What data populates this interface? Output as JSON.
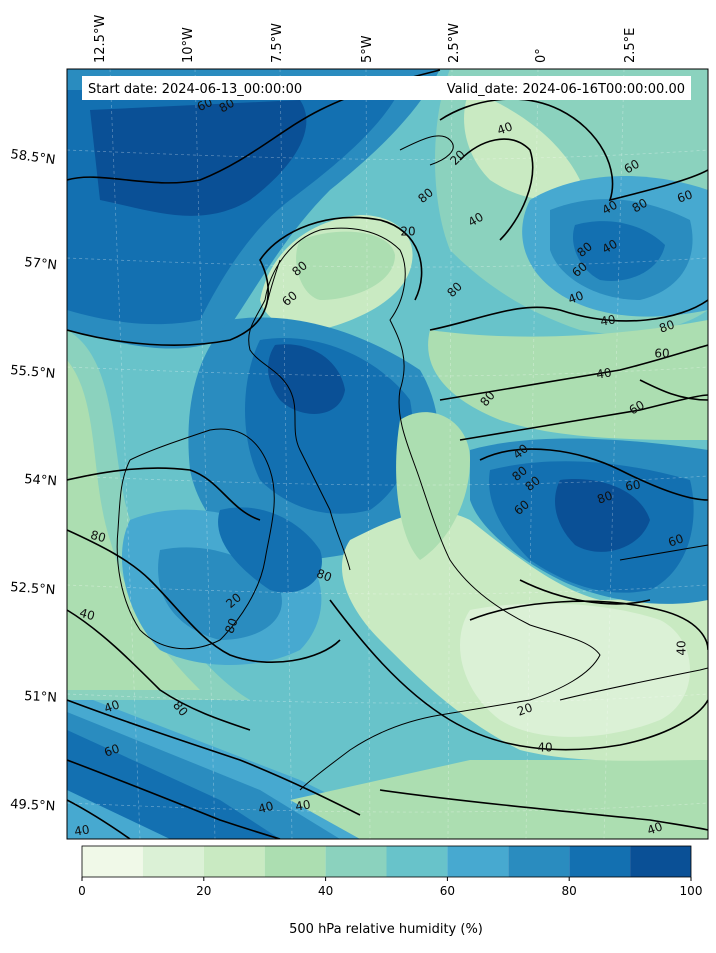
{
  "map": {
    "start_label": "Start date: 2024-06-13_00:00:00",
    "valid_label": "Valid_date: 2024-06-16T00:00:00.00",
    "longitude_labels": [
      "12.5°W",
      "10°W",
      "7.5°W",
      "5°W",
      "2.5°W",
      "0°",
      "2.5°E"
    ],
    "latitude_labels": [
      "58.5°N",
      "57°N",
      "55.5°N",
      "54°N",
      "52.5°N",
      "51°N",
      "49.5°N"
    ],
    "contour_labels": [
      "60",
      "80",
      "40",
      "20",
      "60",
      "80",
      "40",
      "20",
      "80",
      "60",
      "80",
      "40",
      "60",
      "80",
      "40",
      "80",
      "60",
      "40",
      "40",
      "80",
      "60",
      "40",
      "60",
      "80",
      "40",
      "80",
      "60",
      "80",
      "80",
      "60",
      "60",
      "40",
      "20",
      "40",
      "40",
      "40",
      "40",
      "40",
      "80",
      "60",
      "40",
      "80",
      "40",
      "20",
      "80",
      "80"
    ],
    "colors": {
      "level_0_10": "#f0f9e8",
      "level_10_20": "#dbf1d6",
      "level_20_30": "#c9eac2",
      "level_30_40": "#acdeb1",
      "level_40_50": "#8bd2be",
      "level_50_60": "#68c3ca",
      "level_60_70": "#47a9d0",
      "level_70_80": "#2a8cbf",
      "level_80_90": "#1370b1",
      "level_90_100": "#0a5096",
      "contour_line": "#000000",
      "coastline": "#000000"
    }
  },
  "colorbar": {
    "title": "500 hPa relative humidity (%)",
    "ticks": [
      "0",
      "20",
      "40",
      "60",
      "80",
      "100"
    ],
    "levels": [
      0,
      10,
      20,
      30,
      40,
      50,
      60,
      70,
      80,
      90,
      100
    ]
  }
}
